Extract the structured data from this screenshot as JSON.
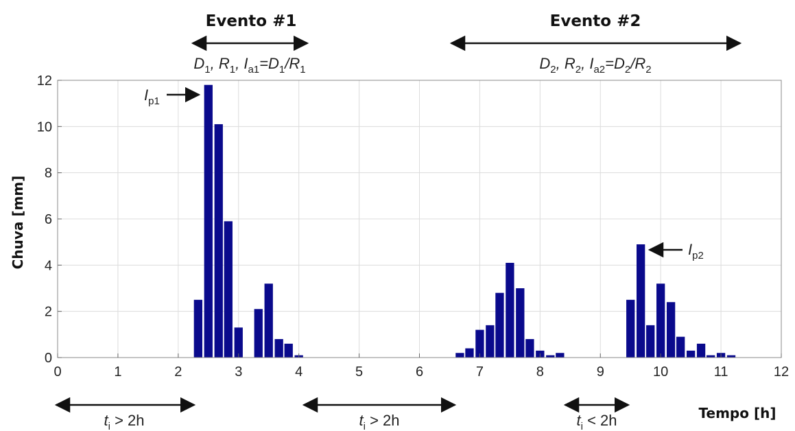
{
  "chart_data": {
    "type": "bar",
    "xlabel": "Tempo [h]",
    "ylabel": "Chuva [mm]",
    "xlim": [
      0,
      12
    ],
    "ylim": [
      0,
      12
    ],
    "xticks": [
      0,
      1,
      2,
      3,
      4,
      5,
      6,
      7,
      8,
      9,
      10,
      11,
      12
    ],
    "yticks": [
      0,
      2,
      4,
      6,
      8,
      10,
      12
    ],
    "grid": true,
    "bar_color": "#0a0a8c",
    "bar_width_h": 0.14,
    "x": [
      2.33,
      2.5,
      2.67,
      2.83,
      3.0,
      3.33,
      3.5,
      3.67,
      3.83,
      4.0,
      6.67,
      6.83,
      7.0,
      7.17,
      7.33,
      7.5,
      7.67,
      7.83,
      8.0,
      8.17,
      8.33,
      9.5,
      9.67,
      9.83,
      10.0,
      10.17,
      10.33,
      10.5,
      10.67,
      10.83,
      11.0,
      11.17
    ],
    "values": [
      2.5,
      11.8,
      10.1,
      5.9,
      1.3,
      2.1,
      3.2,
      0.8,
      0.6,
      0.1,
      0.2,
      0.4,
      1.2,
      1.4,
      2.8,
      4.1,
      3.0,
      0.8,
      0.3,
      0.1,
      0.2,
      2.5,
      4.9,
      1.4,
      3.2,
      2.4,
      0.9,
      0.3,
      0.6,
      0.1,
      0.2,
      0.1
    ]
  },
  "annotations": {
    "event1": {
      "title": "Evento #1",
      "formula": {
        "d": "D",
        "r": "R",
        "i": "I",
        "sub1": "1",
        "suba": "a1",
        "eq": "=",
        "slash": "/"
      }
    },
    "event2": {
      "title": "Evento #2",
      "formula": {
        "d": "D",
        "r": "R",
        "i": "I",
        "sub1": "2",
        "suba": "a2",
        "eq": "=",
        "slash": "/"
      }
    },
    "peaks": [
      {
        "letter": "I",
        "sub": "p1"
      },
      {
        "letter": "I",
        "sub": "p2"
      }
    ],
    "gaps": [
      {
        "t": "t",
        "sub": "i",
        "rest": " > 2h"
      },
      {
        "t": "t",
        "sub": "i",
        "rest": " > 2h"
      },
      {
        "t": "t",
        "sub": "i",
        "rest": " < 2h"
      }
    ],
    "comma": ", "
  }
}
